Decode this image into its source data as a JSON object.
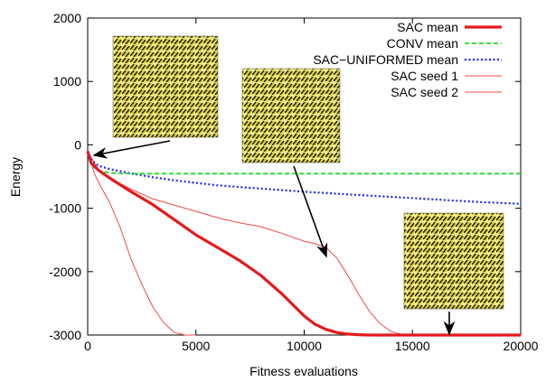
{
  "chart_data": {
    "type": "line",
    "title": "",
    "xlabel": "Fitness evaluations",
    "ylabel": "Energy",
    "xlim": [
      0,
      20000
    ],
    "ylim": [
      -3000,
      2000
    ],
    "xticks": [
      0,
      5000,
      10000,
      15000,
      20000
    ],
    "yticks": [
      -3000,
      -2000,
      -1000,
      0,
      1000,
      2000
    ],
    "grid": false,
    "legend_position": "top-right",
    "series": [
      {
        "name": "SAC mean",
        "color": "#e41a1c",
        "style": "solid-thick",
        "x": [
          0,
          150,
          500,
          1000,
          2000,
          3000,
          4000,
          5000,
          6000,
          7000,
          8000,
          9000,
          10000,
          10500,
          11000,
          11500,
          12000,
          12500,
          13000,
          14000,
          15000,
          20000
        ],
        "y": [
          -100,
          -280,
          -400,
          -520,
          -740,
          -940,
          -1180,
          -1420,
          -1620,
          -1820,
          -2060,
          -2360,
          -2700,
          -2830,
          -2910,
          -2960,
          -2985,
          -2995,
          -3000,
          -3000,
          -3000,
          -3000
        ]
      },
      {
        "name": "CONV mean",
        "color": "#22dd22",
        "style": "dashed",
        "x": [
          0,
          100,
          300,
          600,
          1000,
          1500,
          2000,
          5000,
          10000,
          15000,
          20000
        ],
        "y": [
          -100,
          -240,
          -360,
          -420,
          -440,
          -450,
          -455,
          -455,
          -455,
          -455,
          -455
        ]
      },
      {
        "name": "SAC−UNIFORMED mean",
        "color": "#1a2bea",
        "style": "dotted",
        "x": [
          0,
          200,
          500,
          1000,
          2000,
          3000,
          4000,
          5000,
          6000,
          8000,
          10000,
          12000,
          14000,
          16000,
          18000,
          20000
        ],
        "y": [
          -100,
          -250,
          -330,
          -380,
          -450,
          -510,
          -560,
          -600,
          -640,
          -690,
          -740,
          -780,
          -820,
          -860,
          -900,
          -930
        ]
      },
      {
        "name": "SAC seed 1",
        "color": "#f04a4a",
        "style": "thin",
        "x": [
          0,
          300,
          700,
          1000,
          1500,
          2000,
          2500,
          3000,
          3500,
          4000,
          4500,
          5000
        ],
        "y": [
          -100,
          -450,
          -720,
          -900,
          -1300,
          -1800,
          -2200,
          -2550,
          -2800,
          -2960,
          -3000,
          -3000
        ]
      },
      {
        "name": "SAC seed 2",
        "color": "#f04a4a",
        "style": "thin",
        "x": [
          0,
          500,
          1000,
          2000,
          3000,
          4000,
          5000,
          6000,
          7000,
          8000,
          9000,
          10000,
          10500,
          11000,
          11500,
          12000,
          12500,
          13000,
          13500,
          14000,
          14500,
          15000,
          20000
        ],
        "y": [
          -100,
          -400,
          -520,
          -700,
          -850,
          -950,
          -1050,
          -1150,
          -1230,
          -1290,
          -1400,
          -1520,
          -1560,
          -1620,
          -1780,
          -2050,
          -2350,
          -2620,
          -2820,
          -2940,
          -2990,
          -3000,
          -3000
        ]
      }
    ]
  }
}
